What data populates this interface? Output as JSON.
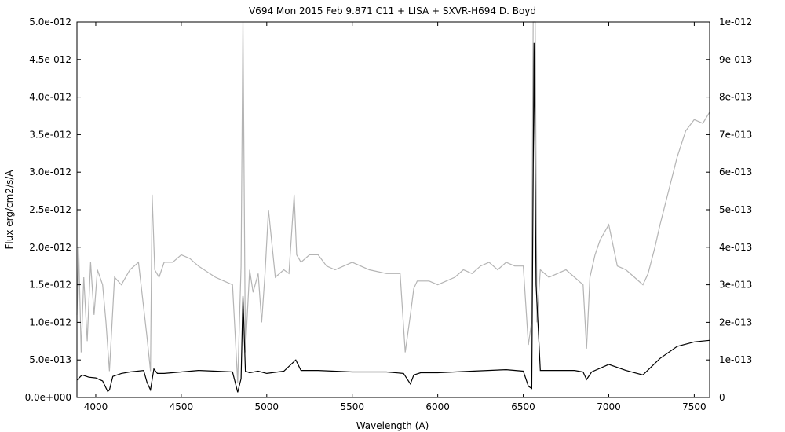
{
  "chart_data": {
    "type": "line",
    "title": "V694 Mon   2015 Feb 9.871   C11 + LISA + SXVR-H694   D. Boyd",
    "xlabel": "Wavelength (A)",
    "ylabel": "Flux erg/cm2/s/A",
    "xlim": [
      3890,
      7590
    ],
    "ylim": [
      0,
      5e-12
    ],
    "y2lim": [
      0,
      1e-12
    ],
    "xticks": [
      4000,
      4500,
      5000,
      5500,
      6000,
      6500,
      7000,
      7500
    ],
    "xtick_labels": [
      "4000",
      "4500",
      "5000",
      "5500",
      "6000",
      "6500",
      "7000",
      "7500"
    ],
    "yticks": [
      0,
      5e-13,
      1e-12,
      1.5e-12,
      2e-12,
      2.5e-12,
      3e-12,
      3.5e-12,
      4e-12,
      4.5e-12,
      5e-12
    ],
    "ytick_labels": [
      "0.0e+000",
      "5.0e-013",
      "1.0e-012",
      "1.5e-012",
      "2.0e-012",
      "2.5e-012",
      "3.0e-012",
      "3.5e-012",
      "4.0e-012",
      "4.5e-012",
      "5.0e-012"
    ],
    "y2ticks": [
      0,
      1e-13,
      2e-13,
      3e-13,
      4e-13,
      5e-13,
      6e-13,
      7e-13,
      8e-13,
      9e-13,
      1e-12
    ],
    "y2tick_labels": [
      "0",
      "1e-013",
      "2e-013",
      "3e-013",
      "4e-013",
      "5e-013",
      "6e-013",
      "7e-013",
      "8e-013",
      "9e-013",
      "1e-012"
    ],
    "grid": false,
    "series": [
      {
        "axis": "left",
        "color": "#000000",
        "x": [
          3890,
          3920,
          3960,
          4000,
          4040,
          4070,
          4080,
          4100,
          4150,
          4200,
          4280,
          4300,
          4320,
          4340,
          4360,
          4400,
          4500,
          4600,
          4700,
          4800,
          4830,
          4850,
          4861,
          4875,
          4900,
          4950,
          5000,
          5100,
          5170,
          5200,
          5300,
          5500,
          5700,
          5800,
          5840,
          5860,
          5900,
          6000,
          6200,
          6400,
          6500,
          6530,
          6550,
          6563,
          6575,
          6600,
          6800,
          6850,
          6870,
          6900,
          7000,
          7100,
          7200,
          7300,
          7400,
          7500,
          7590
        ],
        "y": [
          2.3e-13,
          3e-13,
          2.7e-13,
          2.6e-13,
          2.2e-13,
          8e-14,
          1e-13,
          2.8e-13,
          3.2e-13,
          3.4e-13,
          3.6e-13,
          2e-13,
          1e-13,
          3.8e-13,
          3.2e-13,
          3.2e-13,
          3.4e-13,
          3.6e-13,
          3.5e-13,
          3.4e-13,
          7e-14,
          2.5e-13,
          1.35e-12,
          3.5e-13,
          3.3e-13,
          3.5e-13,
          3.2e-13,
          3.5e-13,
          5e-13,
          3.6e-13,
          3.6e-13,
          3.4e-13,
          3.4e-13,
          3.2e-13,
          1.8e-13,
          3e-13,
          3.3e-13,
          3.3e-13,
          3.5e-13,
          3.7e-13,
          3.5e-13,
          1.5e-13,
          1.2e-13,
          4.72e-12,
          1.5e-12,
          3.6e-13,
          3.6e-13,
          3.4e-13,
          2.4e-13,
          3.4e-13,
          4.4e-13,
          3.6e-13,
          3e-13,
          5.2e-13,
          6.8e-13,
          7.4e-13,
          7.6e-13
        ]
      },
      {
        "axis": "right",
        "color": "#b4b4b4",
        "x": [
          3890,
          3900,
          3915,
          3930,
          3950,
          3970,
          3990,
          4010,
          4040,
          4060,
          4080,
          4110,
          4150,
          4200,
          4250,
          4300,
          4320,
          4330,
          4345,
          4370,
          4400,
          4450,
          4500,
          4550,
          4600,
          4700,
          4750,
          4800,
          4830,
          4850,
          4861,
          4875,
          4900,
          4920,
          4950,
          4970,
          4990,
          5010,
          5050,
          5100,
          5130,
          5160,
          5175,
          5200,
          5250,
          5300,
          5350,
          5400,
          5500,
          5600,
          5700,
          5780,
          5810,
          5840,
          5860,
          5880,
          5950,
          6000,
          6100,
          6150,
          6200,
          6250,
          6300,
          6350,
          6400,
          6450,
          6500,
          6530,
          6548,
          6558,
          6570,
          6580,
          6600,
          6650,
          6700,
          6750,
          6800,
          6850,
          6870,
          6890,
          6920,
          6950,
          7000,
          7050,
          7100,
          7150,
          7200,
          7230,
          7270,
          7300,
          7350,
          7400,
          7450,
          7500,
          7550,
          7590
        ],
        "y": [
          2.2e-13,
          4e-13,
          1.2e-13,
          3.2e-13,
          1.5e-13,
          3.6e-13,
          2.2e-13,
          3.4e-13,
          3e-13,
          2e-13,
          7e-14,
          3.2e-13,
          3e-13,
          3.4e-13,
          3.6e-13,
          1.6e-13,
          7e-14,
          5.4e-13,
          3.4e-13,
          3.2e-13,
          3.6e-13,
          3.6e-13,
          3.8e-13,
          3.7e-13,
          3.5e-13,
          3.2e-13,
          3.1e-13,
          3e-13,
          4e-14,
          3.5e-13,
          1e-12,
          1.2e-13,
          3.4e-13,
          2.8e-13,
          3.3e-13,
          2e-13,
          3.3e-13,
          5e-13,
          3.2e-13,
          3.4e-13,
          3.3e-13,
          5.4e-13,
          3.8e-13,
          3.6e-13,
          3.8e-13,
          3.8e-13,
          3.5e-13,
          3.4e-13,
          3.6e-13,
          3.4e-13,
          3.3e-13,
          3.3e-13,
          1.2e-13,
          2.2e-13,
          2.9e-13,
          3.1e-13,
          3.1e-13,
          3e-13,
          3.2e-13,
          3.4e-13,
          3.3e-13,
          3.5e-13,
          3.6e-13,
          3.4e-13,
          3.6e-13,
          3.5e-13,
          3.5e-13,
          1.4e-13,
          2e-13,
          1e-12,
          1e-12,
          2e-13,
          3.4e-13,
          3.2e-13,
          3.3e-13,
          3.4e-13,
          3.2e-13,
          3e-13,
          1.3e-13,
          3.2e-13,
          3.8e-13,
          4.2e-13,
          4.6e-13,
          3.5e-13,
          3.4e-13,
          3.2e-13,
          3e-13,
          3.3e-13,
          4e-13,
          4.6e-13,
          5.5e-13,
          6.4e-13,
          7.1e-13,
          7.4e-13,
          7.3e-13,
          7.6e-13
        ]
      }
    ]
  }
}
